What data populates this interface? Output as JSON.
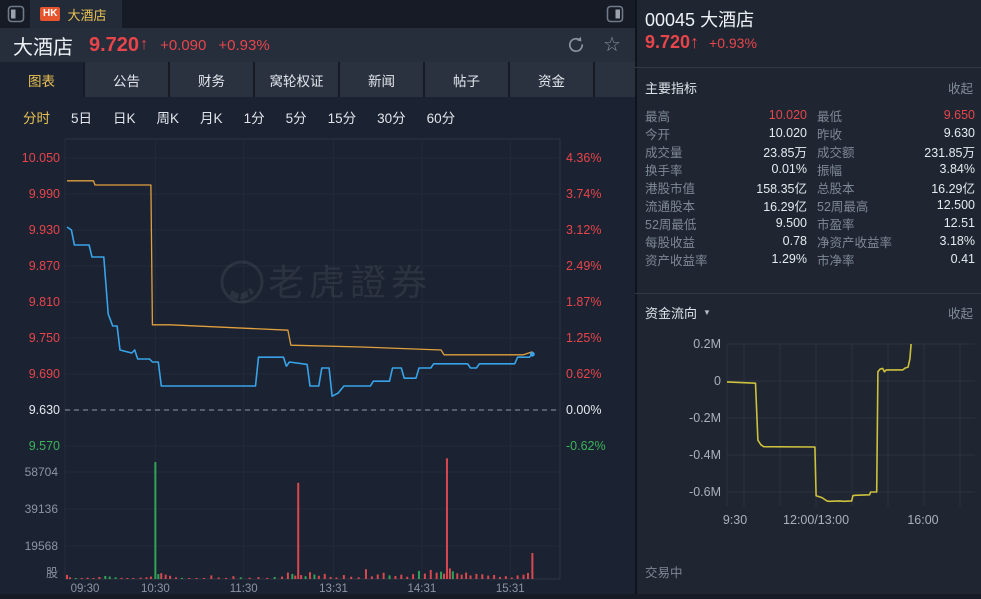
{
  "colors": {
    "up": "#e8454b",
    "down": "#3cb45a",
    "flat": "#e6eaf0",
    "accent": "#e9c254",
    "price_line": "#38a3e8",
    "avg_line": "#e0a03e",
    "flow_line": "#cdc13d",
    "axis_label": "#8d95a3",
    "vol_up": "#d8484f",
    "vol_down": "#2fa457"
  },
  "topbar": {
    "market_badge": "HK",
    "tab_title": "大酒店"
  },
  "header": {
    "name": "大酒店",
    "price": "9.720",
    "arrow": "↑",
    "change": "+0.090",
    "change_pct": "+0.93%"
  },
  "tabs": [
    {
      "key": "chart",
      "label": "图表",
      "active": true
    },
    {
      "key": "announcements",
      "label": "公告",
      "active": false
    },
    {
      "key": "financials",
      "label": "财务",
      "active": false
    },
    {
      "key": "warrants",
      "label": "窝轮权证",
      "active": false
    },
    {
      "key": "news",
      "label": "新闻",
      "active": false
    },
    {
      "key": "posts",
      "label": "帖子",
      "active": false
    },
    {
      "key": "funds",
      "label": "资金",
      "active": false
    }
  ],
  "subtabs": [
    {
      "key": "timeline",
      "label": "分时",
      "active": true
    },
    {
      "key": "5d",
      "label": "5日",
      "active": false
    },
    {
      "key": "daily-k",
      "label": "日K",
      "active": false
    },
    {
      "key": "weekly-k",
      "label": "周K",
      "active": false
    },
    {
      "key": "monthly-k",
      "label": "月K",
      "active": false
    },
    {
      "key": "1min",
      "label": "1分",
      "active": false
    },
    {
      "key": "5min",
      "label": "5分",
      "active": false
    },
    {
      "key": "15min",
      "label": "15分",
      "active": false
    },
    {
      "key": "30min",
      "label": "30分",
      "active": false
    },
    {
      "key": "60min",
      "label": "60分",
      "active": false
    }
  ],
  "right_panel": {
    "code": "00045",
    "name": "大酒店",
    "price": "9.720↑",
    "change_pct": "+0.93%",
    "indicators_title": "主要指标",
    "collapse_label": "收起",
    "flow_title": "资金流向",
    "flow_collapse_label": "收起",
    "status": "交易中",
    "indicator_rows": [
      {
        "l1": "最高",
        "v1": "10.020",
        "c1": "up",
        "l2": "最低",
        "v2": "9.650",
        "c2": "up"
      },
      {
        "l1": "今开",
        "v1": "10.020",
        "c1": "flat",
        "l2": "昨收",
        "v2": "9.630",
        "c2": "flat"
      },
      {
        "l1": "成交量",
        "v1": "23.85万",
        "c1": "flat",
        "l2": "成交额",
        "v2": "231.85万",
        "c2": "flat"
      },
      {
        "l1": "换手率",
        "v1": "0.01%",
        "c1": "flat",
        "l2": "振幅",
        "v2": "3.84%",
        "c2": "flat"
      },
      {
        "l1": "港股市值",
        "v1": "158.35亿",
        "c1": "flat",
        "l2": "总股本",
        "v2": "16.29亿",
        "c2": "flat"
      },
      {
        "l1": "流通股本",
        "v1": "16.29亿",
        "c1": "flat",
        "l2": "52周最高",
        "v2": "12.500",
        "c2": "flat"
      },
      {
        "l1": "52周最低",
        "v1": "9.500",
        "c1": "flat",
        "l2": "市盈率",
        "v2": "12.51",
        "c2": "flat"
      },
      {
        "l1": "每股收益",
        "v1": "0.78",
        "c1": "flat",
        "l2": "净资产收益率",
        "v2": "3.18%",
        "c2": "flat"
      },
      {
        "l1": "资产收益率",
        "v1": "1.29%",
        "c1": "flat",
        "l2": "市净率",
        "v2": "0.41",
        "c2": "flat"
      }
    ]
  },
  "chart_data": [
    {
      "id": "intraday",
      "type": "line",
      "title": "分时图",
      "watermark": "老虎證券",
      "prev_close": 9.63,
      "price_range": [
        9.57,
        10.05
      ],
      "session_minutes": 330,
      "grid_minutes": [
        60,
        120,
        181,
        241,
        301
      ],
      "left_axis": {
        "labels": [
          "10.050",
          "9.990",
          "9.930",
          "9.870",
          "9.810",
          "9.750",
          "9.690",
          "9.630",
          "9.570"
        ],
        "colors": [
          "up",
          "up",
          "up",
          "up",
          "up",
          "up",
          "up",
          "flat",
          "down"
        ]
      },
      "right_axis": {
        "labels": [
          "4.36%",
          "3.74%",
          "3.12%",
          "2.49%",
          "1.87%",
          "1.25%",
          "0.62%",
          "0.00%",
          "-0.62%"
        ],
        "colors": [
          "up",
          "up",
          "up",
          "up",
          "up",
          "up",
          "up",
          "flat",
          "down"
        ]
      },
      "time_labels": [
        "09:30",
        "10:30",
        "11:30",
        "13:31",
        "14:31",
        "15:31"
      ],
      "series": [
        {
          "name": "price",
          "points": [
            [
              0,
              9.935
            ],
            [
              3,
              9.93
            ],
            [
              5,
              9.905
            ],
            [
              15,
              9.905
            ],
            [
              17,
              9.885
            ],
            [
              25,
              9.885
            ],
            [
              28,
              9.79
            ],
            [
              31,
              9.77
            ],
            [
              34,
              9.77
            ],
            [
              36,
              9.73
            ],
            [
              44,
              9.725
            ],
            [
              46,
              9.73
            ],
            [
              48,
              9.715
            ],
            [
              56,
              9.715
            ],
            [
              58,
              9.71
            ],
            [
              62,
              9.71
            ],
            [
              64,
              9.67
            ],
            [
              128,
              9.67
            ],
            [
              130,
              9.718
            ],
            [
              147,
              9.718
            ],
            [
              149,
              9.703
            ],
            [
              151,
              9.71
            ],
            [
              163,
              9.706
            ],
            [
              165,
              9.67
            ],
            [
              171,
              9.67
            ],
            [
              173,
              9.7
            ],
            [
              178,
              9.7
            ],
            [
              180,
              9.653
            ],
            [
              184,
              9.658
            ],
            [
              188,
              9.67
            ],
            [
              206,
              9.67
            ],
            [
              208,
              9.678
            ],
            [
              219,
              9.678
            ],
            [
              221,
              9.7
            ],
            [
              227,
              9.7
            ],
            [
              229,
              9.683
            ],
            [
              237,
              9.683
            ],
            [
              239,
              9.7
            ],
            [
              247,
              9.7
            ],
            [
              249,
              9.707
            ],
            [
              272,
              9.707
            ],
            [
              274,
              9.7
            ],
            [
              278,
              9.7
            ],
            [
              280,
              9.707
            ],
            [
              304,
              9.707
            ],
            [
              306,
              9.718
            ],
            [
              314,
              9.718
            ],
            [
              316,
              9.723
            ]
          ]
        },
        {
          "name": "avg",
          "points": [
            [
              0,
              10.012
            ],
            [
              18,
              10.012
            ],
            [
              19,
              10.005
            ],
            [
              57,
              10.005
            ],
            [
              58,
              9.772
            ],
            [
              70,
              9.772
            ],
            [
              150,
              9.763
            ],
            [
              152,
              9.738
            ],
            [
              200,
              9.735
            ],
            [
              254,
              9.73
            ],
            [
              256,
              9.722
            ],
            [
              310,
              9.722
            ],
            [
              316,
              9.727
            ]
          ]
        }
      ],
      "volume": {
        "unit": "股",
        "ticks": [
          "58704",
          "39136",
          "19568"
        ],
        "tick_values": [
          58704,
          39136,
          19568
        ],
        "bars": [
          [
            0,
            2200,
            "u"
          ],
          [
            2,
            900,
            "u"
          ],
          [
            6,
            500,
            "d"
          ],
          [
            10,
            400,
            "u"
          ],
          [
            14,
            700,
            "u"
          ],
          [
            18,
            500,
            "u"
          ],
          [
            22,
            1100,
            "u"
          ],
          [
            26,
            1600,
            "d"
          ],
          [
            29,
            1300,
            "d"
          ],
          [
            33,
            900,
            "d"
          ],
          [
            37,
            600,
            "u"
          ],
          [
            41,
            500,
            "u"
          ],
          [
            45,
            400,
            "u"
          ],
          [
            50,
            700,
            "u"
          ],
          [
            54,
            900,
            "u"
          ],
          [
            57,
            1300,
            "u"
          ],
          [
            60,
            62000,
            "d"
          ],
          [
            62,
            2600,
            "d"
          ],
          [
            64,
            3100,
            "u"
          ],
          [
            67,
            2300,
            "u"
          ],
          [
            70,
            1700,
            "u"
          ],
          [
            74,
            900,
            "u"
          ],
          [
            78,
            600,
            "d"
          ],
          [
            83,
            400,
            "u"
          ],
          [
            88,
            500,
            "u"
          ],
          [
            93,
            400,
            "u"
          ],
          [
            98,
            1900,
            "u"
          ],
          [
            103,
            800,
            "u"
          ],
          [
            108,
            600,
            "u"
          ],
          [
            113,
            1500,
            "u"
          ],
          [
            118,
            900,
            "d"
          ],
          [
            124,
            700,
            "u"
          ],
          [
            130,
            1000,
            "u"
          ],
          [
            136,
            600,
            "u"
          ],
          [
            141,
            1100,
            "d"
          ],
          [
            146,
            1300,
            "u"
          ],
          [
            150,
            3400,
            "u"
          ],
          [
            153,
            2700,
            "d"
          ],
          [
            155,
            1800,
            "u"
          ],
          [
            157,
            51000,
            "u"
          ],
          [
            159,
            2100,
            "u"
          ],
          [
            162,
            1500,
            "d"
          ],
          [
            165,
            3600,
            "u"
          ],
          [
            168,
            2400,
            "d"
          ],
          [
            171,
            1700,
            "u"
          ],
          [
            175,
            2700,
            "u"
          ],
          [
            179,
            1100,
            "u"
          ],
          [
            183,
            800,
            "u"
          ],
          [
            188,
            2100,
            "u"
          ],
          [
            193,
            1200,
            "u"
          ],
          [
            198,
            900,
            "u"
          ],
          [
            203,
            5200,
            "u"
          ],
          [
            207,
            1400,
            "u"
          ],
          [
            211,
            2400,
            "u"
          ],
          [
            215,
            3300,
            "u"
          ],
          [
            219,
            1900,
            "d"
          ],
          [
            223,
            1600,
            "u"
          ],
          [
            227,
            2300,
            "u"
          ],
          [
            231,
            1200,
            "u"
          ],
          [
            235,
            2600,
            "u"
          ],
          [
            239,
            4300,
            "d"
          ],
          [
            243,
            2900,
            "u"
          ],
          [
            247,
            4800,
            "u"
          ],
          [
            251,
            3400,
            "u"
          ],
          [
            254,
            3900,
            "d"
          ],
          [
            256,
            2800,
            "u"
          ],
          [
            258,
            64000,
            "u"
          ],
          [
            260,
            5600,
            "u"
          ],
          [
            262,
            4100,
            "d"
          ],
          [
            265,
            3000,
            "u"
          ],
          [
            268,
            2300,
            "u"
          ],
          [
            271,
            3400,
            "u"
          ],
          [
            274,
            1900,
            "u"
          ],
          [
            278,
            2700,
            "u"
          ],
          [
            282,
            2500,
            "u"
          ],
          [
            286,
            1800,
            "u"
          ],
          [
            290,
            2100,
            "u"
          ],
          [
            294,
            1100,
            "u"
          ],
          [
            298,
            1500,
            "u"
          ],
          [
            302,
            800,
            "u"
          ],
          [
            306,
            1900,
            "u"
          ],
          [
            310,
            2300,
            "u"
          ],
          [
            313,
            3200,
            "u"
          ],
          [
            316,
            13800,
            "u"
          ]
        ]
      }
    },
    {
      "id": "fund-flow",
      "type": "line",
      "title": "资金流向",
      "y_labels": [
        "0.2M",
        "0",
        "-0.2M",
        "-0.4M",
        "-0.6M"
      ],
      "y_values": [
        0.2,
        0,
        -0.2,
        -0.4,
        -0.6
      ],
      "x_labels": [
        "9:30",
        "12:00/13:00",
        "16:00"
      ],
      "x_label_minutes": [
        0,
        150,
        330
      ],
      "ylim": [
        -0.7,
        0.25
      ],
      "series": [
        {
          "name": "net-inflow",
          "points": [
            [
              0,
              -0.005
            ],
            [
              48,
              -0.012
            ],
            [
              52,
              -0.32
            ],
            [
              57,
              -0.345
            ],
            [
              62,
              -0.355
            ],
            [
              148,
              -0.357
            ],
            [
              150,
              -0.62
            ],
            [
              160,
              -0.63
            ],
            [
              168,
              -0.648
            ],
            [
              172,
              -0.65
            ],
            [
              190,
              -0.648
            ],
            [
              196,
              -0.65
            ],
            [
              210,
              -0.648
            ],
            [
              212,
              -0.62
            ],
            [
              215,
              -0.618
            ],
            [
              240,
              -0.615
            ],
            [
              242,
              -0.6
            ],
            [
              252,
              -0.6
            ],
            [
              254,
              0.05
            ],
            [
              258,
              0.065
            ],
            [
              262,
              0.068
            ],
            [
              265,
              0.05
            ],
            [
              268,
              0.06
            ],
            [
              296,
              0.06
            ],
            [
              300,
              0.07
            ],
            [
              305,
              0.075
            ],
            [
              308,
              0.12
            ],
            [
              310,
              0.2
            ]
          ]
        }
      ]
    }
  ]
}
